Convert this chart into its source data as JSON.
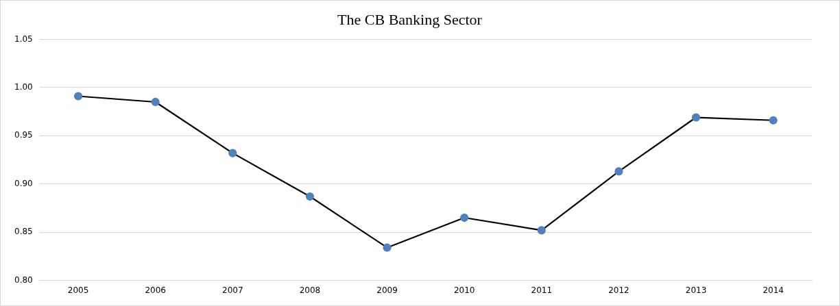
{
  "chart_data": {
    "type": "line",
    "title": "The CB Banking Sector",
    "categories": [
      "2005",
      "2006",
      "2007",
      "2008",
      "2009",
      "2010",
      "2011",
      "2012",
      "2013",
      "2014"
    ],
    "series": [
      {
        "color": "#000000",
        "colors": [
          "#4f81bd",
          "#4f81bd",
          "#4f81bd",
          "#4f81bd",
          "#4f81bd",
          "#4f81bd",
          "#4f81bd",
          "#4f81bd",
          "#4f81bd",
          "#4f81bd"
        ],
        "values": [
          0.991,
          0.985,
          0.932,
          0.887,
          0.834,
          0.865,
          0.852,
          0.913,
          0.969,
          0.966
        ]
      }
    ],
    "ylim": [
      0.8,
      1.05
    ],
    "yticks": [
      {
        "value": 0.8,
        "label": "0.80"
      },
      {
        "value": 0.85,
        "label": "0.85"
      },
      {
        "value": 0.9,
        "label": "0.90"
      },
      {
        "value": 0.95,
        "label": "0.95"
      },
      {
        "value": 1.0,
        "label": "1.00"
      },
      {
        "value": 1.05,
        "label": "1.05"
      }
    ],
    "grid": "y",
    "legend": false,
    "marker": "circle",
    "line_style": "solid"
  }
}
